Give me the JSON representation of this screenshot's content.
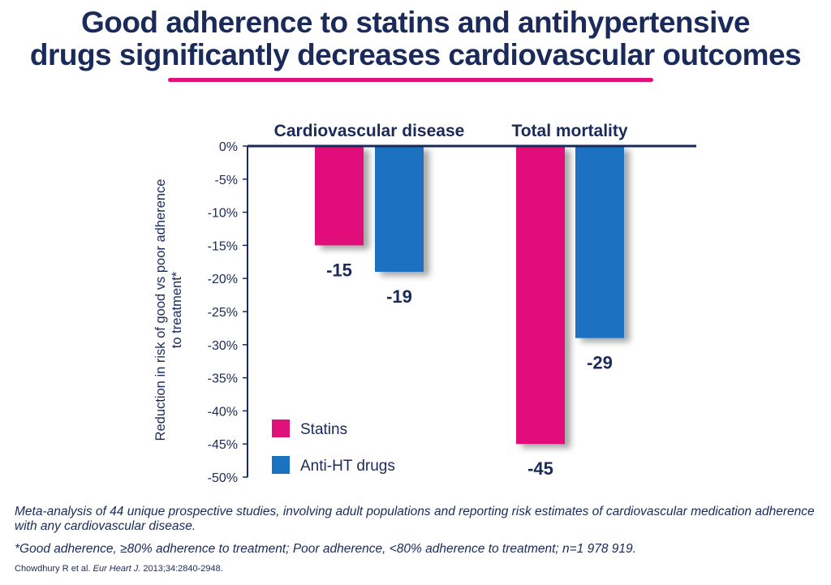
{
  "title": {
    "line1": "Good adherence to statins and antihypertensive",
    "line2": "drugs significantly decreases cardiovascular outcomes"
  },
  "chart_data": {
    "type": "bar",
    "categories": [
      "Cardiovascular disease",
      "Total mortality"
    ],
    "series": [
      {
        "name": "Statins",
        "values": [
          -15,
          -45
        ],
        "labels": [
          "-15",
          "-45"
        ],
        "color": "#e0117a"
      },
      {
        "name": "Anti-HT drugs",
        "values": [
          -19,
          -29
        ],
        "labels": [
          "-19",
          "-29"
        ],
        "color": "#1a72c0"
      }
    ],
    "ylabel": "Reduction in risk of good vs poor adherence to treatment*",
    "ylabel_lines": [
      "Reduction in risk of good vs poor adherence",
      "to treatment*"
    ],
    "ylim": [
      -50,
      0
    ],
    "yticks": [
      0,
      -5,
      -10,
      -15,
      -20,
      -25,
      -30,
      -35,
      -40,
      -45,
      -50
    ],
    "ytick_labels": [
      "0%",
      "-5%",
      "-10%",
      "-15%",
      "-20%",
      "-25%",
      "-30%",
      "-35%",
      "-40%",
      "-45%",
      "-50%"
    ],
    "legend_position": "bottom-left",
    "grid": false
  },
  "footnotes": {
    "description": "Meta-analysis of 44 unique prospective studies, involving adult populations and reporting risk estimates of cardiovascular medication adherence with any cardiovascular disease.",
    "definition": "*Good adherence, ≥80% adherence to treatment; Poor adherence, <80% adherence to treatment; n=1 978 919.",
    "citation_authors": "Chowdhury R et al. ",
    "citation_journal": "Eur Heart J.",
    "citation_details": " 2013;34:2840-2948."
  },
  "colors": {
    "title": "#1a2a5a",
    "accent": "#e0117a",
    "statins": "#e0117a",
    "anti_ht": "#1a72c0"
  }
}
